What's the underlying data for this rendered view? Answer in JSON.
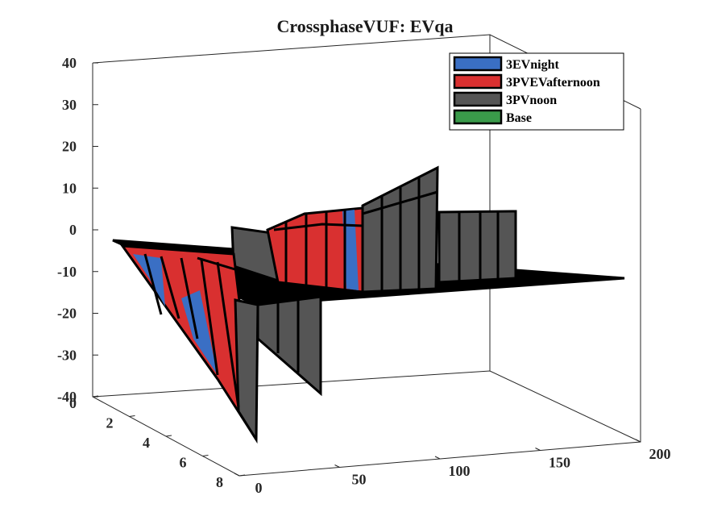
{
  "chart_data": {
    "type": "surface3d",
    "title": "CrossphaseVUF: EVqa",
    "xlabel": "",
    "ylabel": "",
    "zlabel": "",
    "xlim": [
      0,
      200
    ],
    "ylim": [
      0,
      8
    ],
    "zlim": [
      -40,
      40
    ],
    "x_ticks": [
      "0",
      "50",
      "100",
      "150",
      "200"
    ],
    "y_ticks": [
      "0",
      "2",
      "4",
      "6",
      "8"
    ],
    "z_ticks": [
      "40",
      "30",
      "20",
      "10",
      "0",
      "-10",
      "-20",
      "-30",
      "-40"
    ],
    "grid": false,
    "legend_position": "top-right",
    "series": [
      {
        "name": "3EVnight",
        "color": "#3a6fc4"
      },
      {
        "name": "3PVEVafternoon",
        "color": "#d93030"
      },
      {
        "name": "3PVnoon",
        "color": "#555555"
      },
      {
        "name": "Base",
        "color": "#3a9a4a"
      }
    ]
  }
}
